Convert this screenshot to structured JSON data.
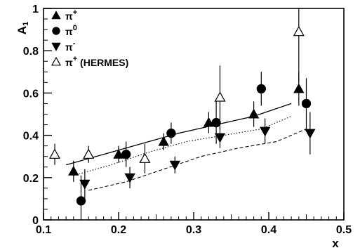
{
  "chart_data": {
    "type": "scatter",
    "title": "",
    "xlabel": "x",
    "ylabel": "A",
    "ylabel_sub": "1",
    "xlim": [
      0.1,
      0.5
    ],
    "ylim": [
      0,
      1
    ],
    "x_ticks": [
      {
        "value": 0.1,
        "label": "0.1"
      },
      {
        "value": 0.2,
        "label": "0.2"
      },
      {
        "value": 0.3,
        "label": "0.3"
      },
      {
        "value": 0.4,
        "label": "0.4"
      },
      {
        "value": 0.5,
        "label": "0.5"
      }
    ],
    "y_ticks": [
      {
        "value": 0,
        "label": "0"
      },
      {
        "value": 0.2,
        "label": "0.2"
      },
      {
        "value": 0.4,
        "label": "0.4"
      },
      {
        "value": 0.6,
        "label": "0.6"
      },
      {
        "value": 0.8,
        "label": "0.8"
      },
      {
        "value": 1,
        "label": "1"
      }
    ],
    "grid": false,
    "legend_position": "top-left",
    "series": [
      {
        "key": "pi_plus",
        "name": "π",
        "name_sup": "+",
        "name_suffix": "",
        "marker": "triangle-up-filled",
        "color": "#000000",
        "points": [
          {
            "x": 0.14,
            "y": 0.23,
            "yerr": 0.05
          },
          {
            "x": 0.2,
            "y": 0.31,
            "yerr": 0.04
          },
          {
            "x": 0.26,
            "y": 0.37,
            "yerr": 0.04
          },
          {
            "x": 0.32,
            "y": 0.46,
            "yerr": 0.05
          },
          {
            "x": 0.38,
            "y": 0.5,
            "yerr": 0.06
          },
          {
            "x": 0.44,
            "y": 0.62,
            "yerr": 0.08
          }
        ]
      },
      {
        "key": "pi_zero",
        "name": "π",
        "name_sup": "0",
        "name_suffix": "",
        "marker": "circle-filled",
        "color": "#000000",
        "points": [
          {
            "x": 0.15,
            "y": 0.09,
            "yerr": 0.12
          },
          {
            "x": 0.21,
            "y": 0.31,
            "yerr": 0.06
          },
          {
            "x": 0.27,
            "y": 0.41,
            "yerr": 0.05
          },
          {
            "x": 0.33,
            "y": 0.46,
            "yerr": 0.1
          },
          {
            "x": 0.39,
            "y": 0.62,
            "yerr": 0.08
          },
          {
            "x": 0.45,
            "y": 0.55,
            "yerr": 0.12
          }
        ]
      },
      {
        "key": "pi_minus",
        "name": "π",
        "name_sup": "-",
        "name_suffix": "",
        "marker": "triangle-down-filled",
        "color": "#000000",
        "points": [
          {
            "x": 0.155,
            "y": 0.17,
            "yerr": 0.07
          },
          {
            "x": 0.215,
            "y": 0.2,
            "yerr": 0.05
          },
          {
            "x": 0.275,
            "y": 0.26,
            "yerr": 0.04
          },
          {
            "x": 0.335,
            "y": 0.39,
            "yerr": 0.05
          },
          {
            "x": 0.395,
            "y": 0.42,
            "yerr": 0.06
          },
          {
            "x": 0.455,
            "y": 0.41,
            "yerr": 0.1
          }
        ]
      },
      {
        "key": "pi_plus_hermes",
        "name": "π",
        "name_sup": "+",
        "name_suffix": " (HERMES)",
        "marker": "triangle-up-open",
        "color": "#000000",
        "points": [
          {
            "x": 0.115,
            "y": 0.31,
            "yerr": 0.05
          },
          {
            "x": 0.16,
            "y": 0.31,
            "yerr": 0.04
          },
          {
            "x": 0.235,
            "y": 0.29,
            "yerr": 0.07
          },
          {
            "x": 0.335,
            "y": 0.58,
            "yerr": 0.15
          },
          {
            "x": 0.44,
            "y": 0.89,
            "yerr": 0.24
          }
        ]
      }
    ],
    "curves": [
      {
        "key": "pi_plus_curve",
        "style": "solid",
        "points": [
          [
            0.13,
            0.26
          ],
          [
            0.18,
            0.31
          ],
          [
            0.23,
            0.36
          ],
          [
            0.28,
            0.41
          ],
          [
            0.33,
            0.45
          ],
          [
            0.38,
            0.49
          ],
          [
            0.43,
            0.55
          ]
        ]
      },
      {
        "key": "pi_zero_curve",
        "style": "dotted",
        "points": [
          [
            0.14,
            0.21
          ],
          [
            0.19,
            0.26
          ],
          [
            0.24,
            0.32
          ],
          [
            0.29,
            0.37
          ],
          [
            0.34,
            0.4
          ],
          [
            0.39,
            0.43
          ],
          [
            0.43,
            0.49
          ]
        ]
      },
      {
        "key": "pi_minus_curve",
        "style": "dashed",
        "points": [
          [
            0.16,
            0.14
          ],
          [
            0.21,
            0.18
          ],
          [
            0.26,
            0.24
          ],
          [
            0.31,
            0.3
          ],
          [
            0.36,
            0.34
          ],
          [
            0.41,
            0.37
          ],
          [
            0.45,
            0.43
          ]
        ]
      }
    ]
  }
}
